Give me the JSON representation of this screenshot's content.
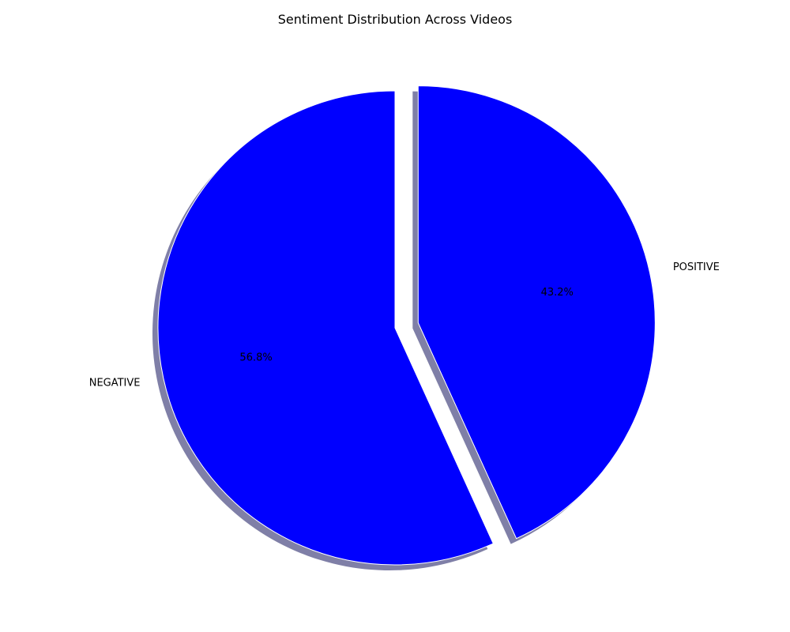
{
  "chart_data": {
    "type": "pie",
    "title": "Sentiment Distribution Across Videos",
    "slices": [
      {
        "label": "POSITIVE",
        "percent_label": "43.2%",
        "value": 43.2,
        "color": "#0000ff",
        "exploded": true
      },
      {
        "label": "NEGATIVE",
        "percent_label": "56.8%",
        "value": 56.8,
        "color": "#0000ff",
        "exploded": false
      }
    ],
    "start_angle_deg": 90,
    "direction": "clockwise",
    "shadow": true,
    "edge_color": "#ffffff",
    "shadow_color": "#000050"
  }
}
